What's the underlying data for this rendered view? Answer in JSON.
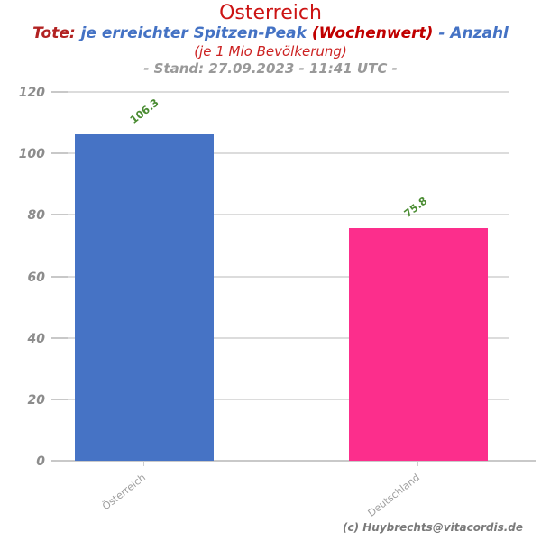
{
  "header": {
    "title": "Osterreich",
    "subtitle_parts": [
      {
        "text": "Tote: ",
        "color": "#b22222"
      },
      {
        "text": "je erreichter Spitzen-Peak ",
        "color": "#4472c4"
      },
      {
        "text": " (Wochenwert) ",
        "color": "#c00000"
      },
      {
        "text": " - Anzahl",
        "color": "#4472c4"
      }
    ],
    "subtitle2": "(je 1 Mio Bevölkerung)",
    "stand_line": "- Stand: 27.09.2023 - 11:41 UTC -"
  },
  "chart_data": {
    "type": "bar",
    "title": "Osterreich",
    "subtitle": "Tote: je erreichter Spitzen-Peak (Wochenwert) - Anzahl (je 1 Mio Bevölkerung)",
    "categories": [
      "Österreich",
      "Deutschland"
    ],
    "values": [
      106.3,
      75.8
    ],
    "value_labels": [
      "106.3",
      "75.8"
    ],
    "bar_colors": [
      "#4673c5",
      "#fc2e8c"
    ],
    "value_label_color": "#4a8c32",
    "xlabel": "",
    "ylabel": "",
    "ylim": [
      0,
      120
    ],
    "yticks": [
      0,
      20,
      40,
      60,
      80,
      100,
      120
    ],
    "grid": true,
    "legend": false
  },
  "footer": {
    "credit": "(c) Huybrechts@vitacordis.de"
  }
}
